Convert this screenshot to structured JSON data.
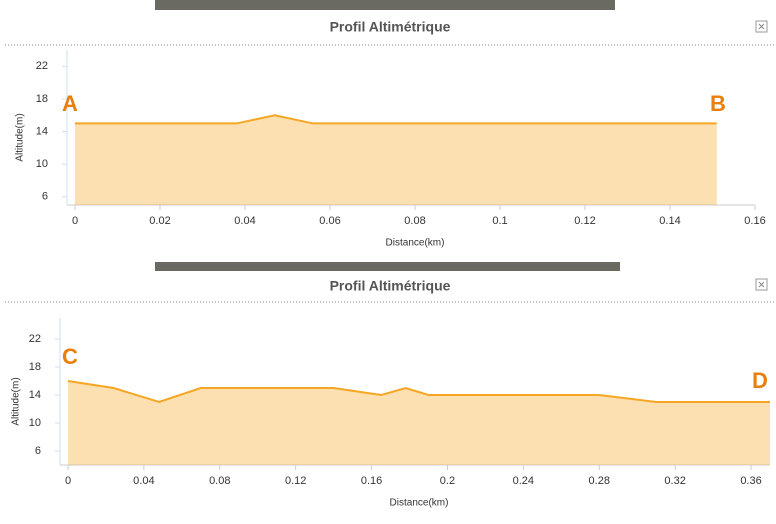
{
  "chart_data": [
    {
      "type": "area",
      "title": "Profil Altimétrique",
      "x_label": "Distance(km)",
      "y_label": "Altitude(m)",
      "x": [
        0,
        0.038,
        0.047,
        0.056,
        0.151
      ],
      "values": [
        15,
        15,
        16,
        15,
        15
      ],
      "color": "#f5a623",
      "xlim": [
        0,
        0.16
      ],
      "xticks": [
        0,
        0.02,
        0.04,
        0.06,
        0.08,
        0.1,
        0.12,
        0.14,
        0.16
      ],
      "ylim": [
        5,
        24
      ],
      "yticks": [
        6,
        10,
        14,
        18,
        22
      ],
      "annotations": [
        "A",
        "B"
      ]
    },
    {
      "type": "area",
      "title": "Profil Altimétrique",
      "x_label": "Distance(km)",
      "y_label": "Altitude(m)",
      "x": [
        0,
        0.024,
        0.048,
        0.07,
        0.14,
        0.165,
        0.178,
        0.19,
        0.28,
        0.31,
        0.37
      ],
      "values": [
        16,
        15,
        13,
        15,
        15,
        14,
        15,
        14,
        14,
        13,
        13
      ],
      "color": "#f5a623",
      "xlim": [
        0,
        0.37
      ],
      "xticks": [
        0,
        0.04,
        0.08,
        0.12,
        0.16,
        0.2,
        0.24,
        0.28,
        0.32,
        0.36
      ],
      "ylim": [
        4,
        25
      ],
      "yticks": [
        6,
        10,
        14,
        18,
        22
      ],
      "annotations": [
        "C",
        "D"
      ]
    }
  ]
}
